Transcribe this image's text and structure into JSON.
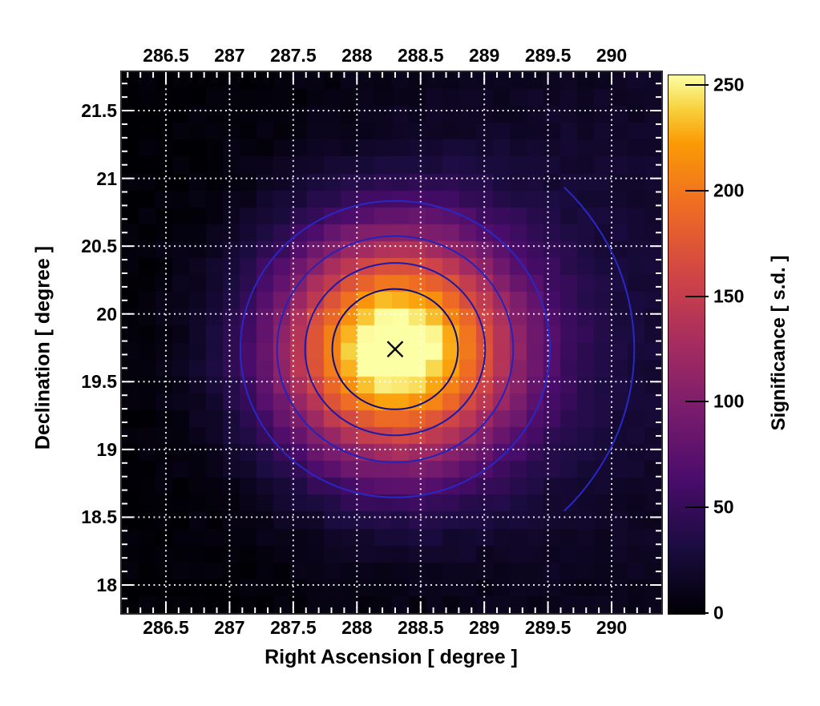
{
  "figure": {
    "background": "#ffffff",
    "frame_color": "#2b2b2b",
    "grid_color": "#ffffff",
    "tick_color": "#ffffff",
    "text_color": "#000000"
  },
  "chart_data": {
    "type": "heatmap",
    "title": "",
    "xlabel": "Right Ascension [ degree ]",
    "ylabel": "Declination [ degree ]",
    "colorbar_label": "Significance [ s.d. ]",
    "x_range": [
      286.154,
      290.39
    ],
    "y_range": [
      17.793,
      21.784
    ],
    "x_ticks": [
      286.5,
      287,
      287.5,
      288,
      288.5,
      289,
      289.5,
      290
    ],
    "x_tick_labels": [
      "286.5",
      "287",
      "287.5",
      "288",
      "288.5",
      "289",
      "289.5",
      "290"
    ],
    "y_ticks": [
      21.5,
      21,
      20.5,
      20,
      19.5,
      19,
      18.5,
      18
    ],
    "y_tick_labels": [
      "21.5",
      "21",
      "20.5",
      "20",
      "19.5",
      "19",
      "18.5",
      "18"
    ],
    "minor_tick_step": 0.1,
    "grid": {
      "show": true,
      "style": "dotted",
      "at_major_ticks": true
    },
    "z_range": [
      0,
      255
    ],
    "colorbar_ticks": [
      0,
      50,
      100,
      150,
      200,
      250
    ],
    "colorbar_tick_labels": [
      "0",
      "50",
      "100",
      "150",
      "200",
      "250"
    ],
    "bins": {
      "nx": 32,
      "ny": 32
    },
    "source_model": {
      "peak_ra": 288.3,
      "peak_dec": 19.74,
      "peak_significance": 263,
      "sigma_ra_deg": 0.667,
      "sigma_dec_deg": 0.6,
      "diffuse_component": {
        "ra": 290.0,
        "dec": 20.1,
        "amplitude": 24,
        "sigma_ra_deg": 1.45,
        "sigma_dec_deg": 1.9
      },
      "noise_amplitude": 4
    },
    "contours": {
      "levels": [
        200,
        150,
        100,
        50
      ],
      "colors": [
        "#0d0d80",
        "#1a1aaa",
        "#2323bc",
        "#2828c6"
      ],
      "partial_arc_level": 5,
      "partial_arc_color": "#2828c6",
      "partial_arc_theta_deg": 45
    },
    "marker": {
      "symbol": "x",
      "ra": 288.3,
      "dec": 19.74,
      "color": "#000000",
      "size": 13
    },
    "palette": {
      "name": "inferno",
      "stops": [
        [
          0.0,
          "#000004"
        ],
        [
          0.125,
          "#1b0c41"
        ],
        [
          0.25,
          "#4a0c6b"
        ],
        [
          0.375,
          "#781c6d"
        ],
        [
          0.5,
          "#a52c60"
        ],
        [
          0.625,
          "#cf4446"
        ],
        [
          0.75,
          "#ed6925"
        ],
        [
          0.875,
          "#fb9b06"
        ],
        [
          0.9375,
          "#f7d13d"
        ],
        [
          1.0,
          "#fcffa4"
        ]
      ]
    }
  }
}
